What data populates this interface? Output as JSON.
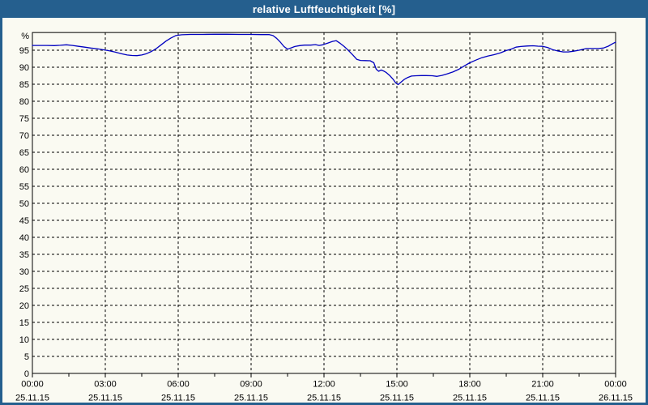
{
  "window": {
    "title": "relative Luftfeuchtigkeit [%]"
  },
  "colors": {
    "frame": "#255f8e",
    "title_text": "#ffffff",
    "canvas_bg": "#fafaf2",
    "grid": "#000000",
    "axis": "#000000",
    "label_text": "#000000",
    "series_line": "#0000c0"
  },
  "chart_data": {
    "type": "line",
    "title": "relative Luftfeuchtigkeit [%]",
    "ylabel": "%",
    "xlabel": "",
    "ylim": [
      0,
      100.2
    ],
    "xlim_hours": [
      0,
      24
    ],
    "grid": true,
    "legend": "none",
    "y_tick_step": 5,
    "y_ticks": [
      0,
      5,
      10,
      15,
      20,
      25,
      30,
      35,
      40,
      45,
      50,
      55,
      60,
      65,
      70,
      75,
      80,
      85,
      90,
      95
    ],
    "y_unit_label": "%",
    "x_major_tick_hours": 3,
    "x_minor_tick_hours": 1.5,
    "x_ticks": [
      {
        "hour": 0,
        "time": "00:00",
        "date": "25.11.15"
      },
      {
        "hour": 3,
        "time": "03:00",
        "date": "25.11.15"
      },
      {
        "hour": 6,
        "time": "06:00",
        "date": "25.11.15"
      },
      {
        "hour": 9,
        "time": "09:00",
        "date": "25.11.15"
      },
      {
        "hour": 12,
        "time": "12:00",
        "date": "25.11.15"
      },
      {
        "hour": 15,
        "time": "15:00",
        "date": "25.11.15"
      },
      {
        "hour": 18,
        "time": "18:00",
        "date": "25.11.15"
      },
      {
        "hour": 21,
        "time": "21:00",
        "date": "25.11.15"
      },
      {
        "hour": 24,
        "time": "00:00",
        "date": "26.11.15"
      }
    ],
    "series": [
      {
        "name": "relative Luftfeuchtigkeit",
        "unit": "%",
        "color": "#0000c0",
        "points": [
          [
            0.0,
            96.4
          ],
          [
            0.3,
            96.4
          ],
          [
            0.6,
            96.4
          ],
          [
            0.9,
            96.35
          ],
          [
            1.15,
            96.45
          ],
          [
            1.4,
            96.6
          ],
          [
            1.65,
            96.4
          ],
          [
            1.9,
            96.15
          ],
          [
            2.15,
            95.9
          ],
          [
            2.4,
            95.65
          ],
          [
            2.65,
            95.45
          ],
          [
            2.9,
            95.15
          ],
          [
            3.15,
            94.85
          ],
          [
            3.4,
            94.45
          ],
          [
            3.65,
            94.0
          ],
          [
            3.9,
            93.6
          ],
          [
            4.1,
            93.45
          ],
          [
            4.3,
            93.4
          ],
          [
            4.5,
            93.6
          ],
          [
            4.7,
            94.0
          ],
          [
            4.9,
            94.65
          ],
          [
            5.1,
            95.5
          ],
          [
            5.3,
            96.6
          ],
          [
            5.5,
            97.7
          ],
          [
            5.7,
            98.6
          ],
          [
            5.9,
            99.3
          ],
          [
            6.15,
            99.55
          ],
          [
            6.5,
            99.65
          ],
          [
            7.0,
            99.65
          ],
          [
            7.5,
            99.7
          ],
          [
            8.0,
            99.7
          ],
          [
            8.5,
            99.65
          ],
          [
            9.0,
            99.65
          ],
          [
            9.4,
            99.6
          ],
          [
            9.75,
            99.6
          ],
          [
            9.9,
            99.3
          ],
          [
            10.05,
            98.5
          ],
          [
            10.2,
            97.4
          ],
          [
            10.35,
            96.1
          ],
          [
            10.5,
            95.3
          ],
          [
            10.65,
            95.7
          ],
          [
            10.8,
            96.1
          ],
          [
            11.0,
            96.35
          ],
          [
            11.2,
            96.5
          ],
          [
            11.45,
            96.5
          ],
          [
            11.65,
            96.65
          ],
          [
            11.8,
            96.4
          ],
          [
            11.95,
            96.6
          ],
          [
            12.15,
            97.1
          ],
          [
            12.35,
            97.6
          ],
          [
            12.5,
            97.8
          ],
          [
            12.67,
            97.0
          ],
          [
            12.83,
            96.1
          ],
          [
            12.95,
            95.3
          ],
          [
            13.05,
            94.6
          ],
          [
            13.2,
            93.5
          ],
          [
            13.35,
            92.3
          ],
          [
            13.5,
            92.0
          ],
          [
            13.7,
            91.95
          ],
          [
            13.9,
            91.9
          ],
          [
            14.05,
            91.3
          ],
          [
            14.15,
            89.4
          ],
          [
            14.25,
            88.8
          ],
          [
            14.35,
            89.2
          ],
          [
            14.45,
            88.9
          ],
          [
            14.55,
            88.5
          ],
          [
            14.7,
            87.6
          ],
          [
            14.85,
            86.4
          ],
          [
            14.95,
            85.4
          ],
          [
            15.05,
            84.9
          ],
          [
            15.15,
            85.5
          ],
          [
            15.3,
            86.4
          ],
          [
            15.45,
            87.0
          ],
          [
            15.6,
            87.4
          ],
          [
            15.8,
            87.5
          ],
          [
            16.0,
            87.55
          ],
          [
            16.2,
            87.55
          ],
          [
            16.45,
            87.5
          ],
          [
            16.65,
            87.3
          ],
          [
            16.85,
            87.6
          ],
          [
            17.05,
            88.0
          ],
          [
            17.3,
            88.6
          ],
          [
            17.55,
            89.4
          ],
          [
            17.8,
            90.5
          ],
          [
            18.0,
            91.3
          ],
          [
            18.25,
            92.1
          ],
          [
            18.5,
            92.8
          ],
          [
            18.75,
            93.3
          ],
          [
            19.0,
            93.7
          ],
          [
            19.25,
            94.2
          ],
          [
            19.5,
            94.9
          ],
          [
            19.7,
            95.3
          ],
          [
            19.9,
            95.9
          ],
          [
            20.1,
            96.1
          ],
          [
            20.35,
            96.25
          ],
          [
            20.6,
            96.3
          ],
          [
            20.8,
            96.2
          ],
          [
            21.0,
            96.15
          ],
          [
            21.2,
            95.8
          ],
          [
            21.4,
            95.2
          ],
          [
            21.6,
            94.8
          ],
          [
            21.85,
            94.5
          ],
          [
            22.05,
            94.5
          ],
          [
            22.25,
            94.7
          ],
          [
            22.5,
            95.0
          ],
          [
            22.8,
            95.5
          ],
          [
            23.05,
            95.5
          ],
          [
            23.3,
            95.5
          ],
          [
            23.5,
            95.65
          ],
          [
            23.7,
            96.2
          ],
          [
            23.9,
            97.0
          ],
          [
            24.0,
            97.35
          ]
        ]
      }
    ]
  }
}
